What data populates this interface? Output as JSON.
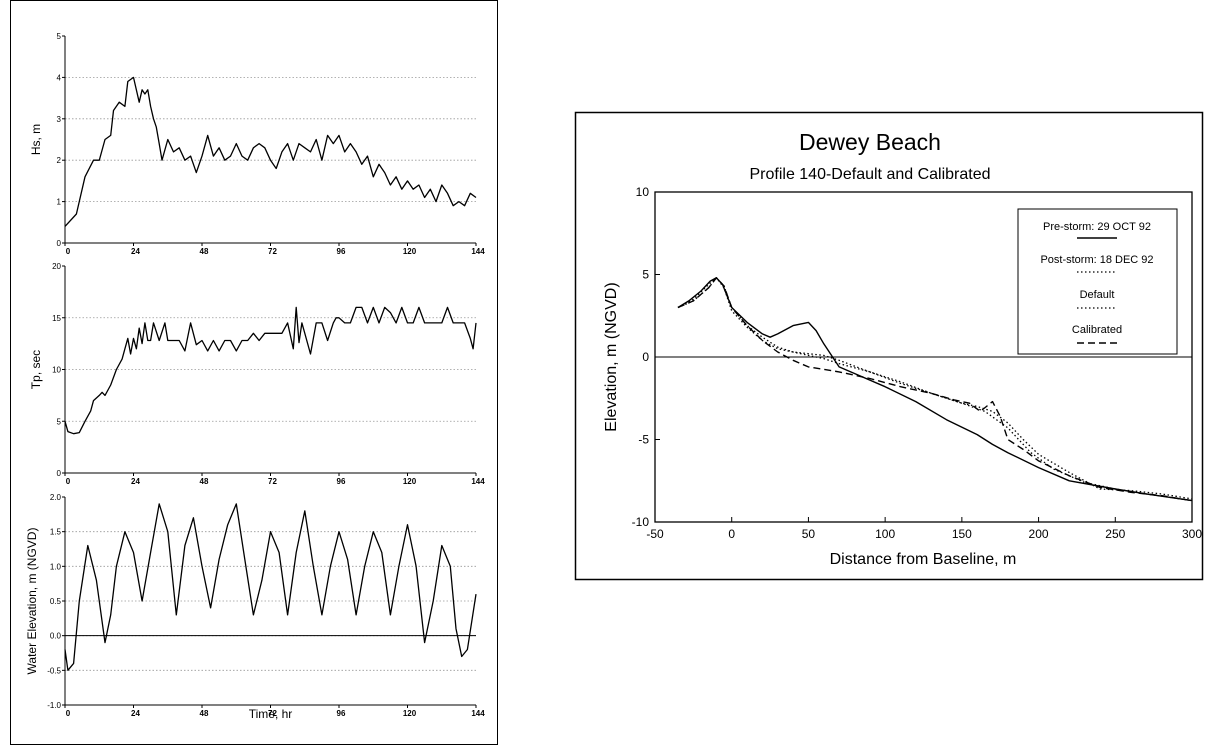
{
  "chart_data": [
    {
      "type": "line",
      "panel": "Hs",
      "ylabel": "Hs, m",
      "xlabel": "",
      "xlim": [
        0,
        144
      ],
      "ylim": [
        0,
        5
      ],
      "xticks": [
        "0",
        "24",
        "48",
        "72",
        "96",
        "120",
        "144"
      ],
      "yticks": [
        "0",
        "1",
        "2",
        "3",
        "4",
        "5"
      ],
      "grid": "dotted-horizontal",
      "series": [
        {
          "x": [
            0,
            4,
            7,
            10,
            12,
            14,
            16,
            17,
            19,
            21,
            22,
            24,
            26,
            27,
            28,
            29,
            30,
            31,
            32,
            33,
            34,
            36,
            38,
            40,
            42,
            44,
            46,
            48,
            50,
            52,
            54,
            56,
            58,
            60,
            62,
            64,
            66,
            68,
            70,
            72,
            74,
            76,
            78,
            80,
            82,
            84,
            86,
            88,
            90,
            92,
            94,
            96,
            98,
            100,
            102,
            104,
            106,
            108,
            110,
            112,
            114,
            116,
            118,
            120,
            122,
            124,
            126,
            128,
            130,
            132,
            134,
            136,
            138,
            140,
            142,
            144
          ],
          "values": [
            0.4,
            0.7,
            1.6,
            2.0,
            2.0,
            2.5,
            2.6,
            3.2,
            3.4,
            3.3,
            3.9,
            4.0,
            3.4,
            3.7,
            3.6,
            3.7,
            3.3,
            3.0,
            2.8,
            2.4,
            2.0,
            2.5,
            2.2,
            2.3,
            2.0,
            2.1,
            1.7,
            2.1,
            2.6,
            2.1,
            2.3,
            2.0,
            2.1,
            2.4,
            2.1,
            2.0,
            2.3,
            2.4,
            2.3,
            2.0,
            1.8,
            2.2,
            2.4,
            2.0,
            2.4,
            2.3,
            2.2,
            2.5,
            2.0,
            2.6,
            2.4,
            2.6,
            2.2,
            2.4,
            2.2,
            1.9,
            2.1,
            1.6,
            1.9,
            1.7,
            1.4,
            1.6,
            1.3,
            1.5,
            1.3,
            1.4,
            1.1,
            1.3,
            1.0,
            1.4,
            1.2,
            0.9,
            1.0,
            0.9,
            1.2,
            1.1
          ]
        }
      ]
    },
    {
      "type": "line",
      "panel": "Tp",
      "ylabel": "Tp, sec",
      "xlabel": "",
      "xlim": [
        0,
        144
      ],
      "ylim": [
        0,
        20
      ],
      "xticks": [
        "0",
        "24",
        "48",
        "72",
        "96",
        "120",
        "144"
      ],
      "yticks": [
        "0",
        "5",
        "10",
        "15",
        "20"
      ],
      "grid": "dotted-horizontal",
      "series": [
        {
          "x": [
            0,
            1,
            3,
            5,
            7,
            9,
            10,
            12,
            13,
            14,
            16,
            18,
            20,
            21,
            22,
            23,
            24,
            25,
            26,
            27,
            28,
            29,
            30,
            31,
            33,
            35,
            36,
            38,
            40,
            42,
            44,
            46,
            48,
            50,
            52,
            54,
            56,
            58,
            60,
            62,
            64,
            66,
            68,
            70,
            72,
            74,
            76,
            78,
            80,
            81,
            82,
            83,
            84,
            86,
            88,
            90,
            92,
            94,
            95,
            96,
            98,
            100,
            102,
            104,
            106,
            108,
            110,
            112,
            114,
            116,
            118,
            120,
            122,
            124,
            126,
            128,
            130,
            132,
            134,
            136,
            138,
            140,
            142,
            143,
            144
          ],
          "values": [
            5,
            4,
            3.8,
            3.9,
            5,
            6,
            7,
            7.5,
            7.8,
            7.5,
            8.5,
            10,
            11,
            12,
            13,
            11.5,
            13,
            12,
            14,
            12.5,
            14.5,
            12.8,
            12.8,
            14.5,
            12.8,
            14.5,
            12.8,
            12.8,
            12.8,
            11.8,
            14.5,
            12.4,
            12.8,
            11.8,
            12.8,
            11.8,
            12.8,
            12.8,
            11.8,
            12.8,
            12.8,
            13.5,
            12.8,
            13.5,
            13.5,
            13.5,
            13.5,
            14.5,
            12.0,
            16,
            12.6,
            14.5,
            13.5,
            11.5,
            14.5,
            14.5,
            12.8,
            14.5,
            15,
            15,
            14.5,
            14.5,
            16,
            16,
            14.5,
            16,
            14.5,
            16,
            15.5,
            14.5,
            16,
            14.5,
            14.5,
            16,
            14.5,
            14.5,
            14.5,
            14.5,
            16,
            14.5,
            14.5,
            14.5,
            13,
            12,
            14.5
          ]
        }
      ]
    },
    {
      "type": "line",
      "panel": "Water Elevation",
      "ylabel": "Water Elevation, m (NGVD)",
      "xlabel": "Time, hr",
      "xlim": [
        0,
        144
      ],
      "ylim": [
        -1.0,
        2.0
      ],
      "xticks": [
        "0",
        "24",
        "48",
        "72",
        "96",
        "120",
        "144"
      ],
      "yticks": [
        "-1.0",
        "-0.5",
        "0.0",
        "0.5",
        "1.0",
        "1.5",
        "2.0"
      ],
      "grid": "dotted-horizontal",
      "series": [
        {
          "x": [
            0,
            1,
            3,
            5,
            8,
            11,
            14,
            16,
            18,
            21,
            24,
            27,
            30,
            33,
            36,
            39,
            42,
            45,
            48,
            51,
            54,
            57,
            60,
            63,
            66,
            69,
            72,
            75,
            78,
            81,
            84,
            87,
            90,
            93,
            96,
            99,
            102,
            105,
            108,
            111,
            114,
            117,
            120,
            123,
            126,
            129,
            132,
            135,
            137,
            139,
            141,
            144
          ],
          "values": [
            -0.2,
            -0.5,
            -0.4,
            0.5,
            1.3,
            0.8,
            -0.1,
            0.3,
            1.0,
            1.5,
            1.2,
            0.5,
            1.2,
            1.9,
            1.5,
            0.3,
            1.3,
            1.7,
            1.0,
            0.4,
            1.1,
            1.6,
            1.9,
            1.1,
            0.3,
            0.8,
            1.5,
            1.2,
            0.3,
            1.2,
            1.8,
            1.0,
            0.3,
            1.0,
            1.5,
            1.1,
            0.3,
            1.0,
            1.5,
            1.2,
            0.3,
            1.0,
            1.6,
            1.0,
            -0.1,
            0.5,
            1.3,
            1.0,
            0.1,
            -0.3,
            -0.2,
            0.6
          ]
        }
      ]
    },
    {
      "type": "line",
      "title": "Dewey Beach",
      "subtitle": "Profile 140-Default and Calibrated",
      "xlabel": "Distance from Baseline, m",
      "ylabel": "Elevation, m (NGVD)",
      "xlim": [
        -50,
        300
      ],
      "ylim": [
        -10,
        10
      ],
      "xticks": [
        "-50",
        "0",
        "50",
        "100",
        "150",
        "200",
        "250",
        "300"
      ],
      "yticks": [
        "-10",
        "-5",
        "0",
        "5",
        "10"
      ],
      "zero_line": true,
      "legend_position": "top-right",
      "legend": [
        "Pre-storm: 29 OCT 92",
        "Post-storm: 18 DEC 92",
        "Default",
        "Calibrated"
      ],
      "series": [
        {
          "name": "Pre-storm: 29 OCT 92",
          "style": "solid",
          "x": [
            -35,
            -28,
            -20,
            -14,
            -10,
            -6,
            0,
            10,
            20,
            25,
            30,
            40,
            50,
            55,
            60,
            70,
            80,
            100,
            120,
            140,
            160,
            170,
            180,
            200,
            220,
            250,
            270,
            300
          ],
          "y": [
            3.0,
            3.4,
            4.0,
            4.6,
            4.8,
            4.4,
            3.0,
            2.1,
            1.4,
            1.2,
            1.4,
            1.9,
            2.1,
            1.6,
            0.8,
            -0.6,
            -1.0,
            -1.8,
            -2.7,
            -3.8,
            -4.7,
            -5.3,
            -5.8,
            -6.7,
            -7.5,
            -8.0,
            -8.3,
            -8.7
          ]
        },
        {
          "name": "Post-storm: 18 DEC 92",
          "style": "dotted",
          "x": [
            -35,
            -25,
            -15,
            -10,
            -5,
            0,
            10,
            20,
            30,
            40,
            50,
            60,
            70,
            90,
            110,
            130,
            150,
            160,
            170,
            180,
            190,
            200,
            220,
            240,
            260,
            280,
            300
          ],
          "y": [
            3.0,
            3.5,
            4.4,
            4.8,
            4.2,
            2.8,
            1.8,
            1.0,
            0.5,
            0.3,
            0.2,
            0.1,
            -0.2,
            -0.9,
            -1.5,
            -2.2,
            -2.8,
            -3.0,
            -3.3,
            -4.0,
            -5.0,
            -5.9,
            -7.0,
            -8.0,
            -8.1,
            -8.3,
            -8.6
          ]
        },
        {
          "name": "Default",
          "style": "dotted",
          "x": [
            -35,
            -25,
            -15,
            -10,
            -5,
            0,
            10,
            20,
            30,
            40,
            50,
            60,
            70,
            90,
            110,
            130,
            150,
            165,
            180,
            195,
            210,
            230,
            250,
            270,
            300
          ],
          "y": [
            3.0,
            3.4,
            4.2,
            4.8,
            4.3,
            3.0,
            1.9,
            1.2,
            0.6,
            0.3,
            0.1,
            -0.1,
            -0.4,
            -0.9,
            -1.6,
            -2.2,
            -2.8,
            -3.3,
            -4.3,
            -5.8,
            -6.8,
            -7.6,
            -8.0,
            -8.3,
            -8.7
          ]
        },
        {
          "name": "Calibrated",
          "style": "dashed",
          "x": [
            -35,
            -25,
            -15,
            -10,
            -5,
            0,
            10,
            20,
            30,
            40,
            50,
            70,
            90,
            110,
            130,
            145,
            155,
            162,
            170,
            175,
            180,
            190,
            200,
            220,
            240,
            260,
            280,
            300
          ],
          "y": [
            3.0,
            3.4,
            4.2,
            4.8,
            4.3,
            3.0,
            1.9,
            1.0,
            0.3,
            -0.2,
            -0.6,
            -0.9,
            -1.3,
            -1.8,
            -2.2,
            -2.6,
            -2.8,
            -3.3,
            -2.7,
            -3.6,
            -5.0,
            -5.6,
            -6.3,
            -7.2,
            -7.9,
            -8.2,
            -8.4,
            -8.7
          ]
        }
      ]
    }
  ]
}
